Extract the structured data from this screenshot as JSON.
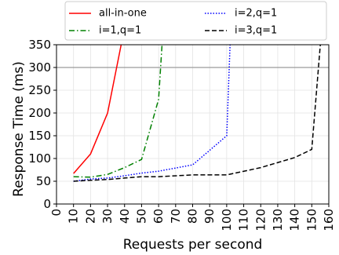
{
  "chart_data": {
    "type": "line",
    "xlabel": "Requests per second",
    "ylabel": "Response Time (ms)",
    "xlim": [
      0,
      160
    ],
    "ylim": [
      0,
      350
    ],
    "xticks": [
      "0",
      "10",
      "20",
      "30",
      "40",
      "50",
      "60",
      "70",
      "80",
      "90",
      "100",
      "110",
      "120",
      "130",
      "140",
      "150",
      "160"
    ],
    "yticks": [
      "0",
      "50",
      "100",
      "150",
      "200",
      "250",
      "300",
      "350"
    ],
    "grid": true,
    "reference_line_y": 300,
    "legend_position": "top, outside plot, two columns",
    "series": [
      {
        "name": "all-in-one",
        "color": "#ff0000",
        "style": "solid",
        "x": [
          10,
          20,
          30,
          38
        ],
        "y": [
          67,
          110,
          200,
          350
        ]
      },
      {
        "name": "i=1,q=1",
        "color": "#008000",
        "style": "dashdot",
        "x": [
          10,
          20,
          30,
          40,
          50,
          60,
          62
        ],
        "y": [
          60,
          59,
          65,
          80,
          98,
          230,
          350
        ]
      },
      {
        "name": "i=2,q=1",
        "color": "#0000ff",
        "style": "dotted",
        "x": [
          10,
          20,
          30,
          40,
          50,
          60,
          80,
          100,
          102
        ],
        "y": [
          50,
          55,
          57,
          62,
          68,
          72,
          86,
          150,
          350
        ]
      },
      {
        "name": "i=3,q=1",
        "color": "#000000",
        "style": "dashed",
        "x": [
          10,
          20,
          30,
          40,
          50,
          60,
          80,
          100,
          120,
          140,
          150,
          155
        ],
        "y": [
          50,
          52,
          54,
          57,
          60,
          60,
          64,
          64,
          80,
          102,
          120,
          350
        ]
      }
    ]
  }
}
